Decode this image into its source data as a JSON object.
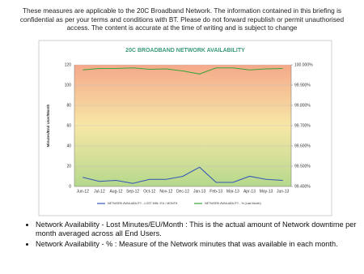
{
  "header": {
    "text": "These measures are applicable to the 20C Broadband Network.  The information contained in this briefing is confidential as per your terms and conditions with BT.  Please do not forward republish or permit unauthorised access.  The content is accurate at the time of writing and is subject to change"
  },
  "chart_data": {
    "type": "line",
    "title": "20C BROADBAND NETWORK AVAILABILITY",
    "y_label": "Minutes/End User/Month",
    "categories": [
      "Jun-12",
      "Jul-12",
      "Aug-12",
      "Sep-12",
      "Oct-12",
      "Nov-12",
      "Dec-12",
      "Jan-13",
      "Feb-13",
      "Mar-13",
      "Apr-13",
      "May-13",
      "Jun-13"
    ],
    "series": [
      {
        "name": "NETWORK AVAILABILITY - LOST MIN / EU / MONTH",
        "color": "#3556b8",
        "values": [
          9,
          5,
          6,
          3,
          7,
          7,
          10,
          19,
          4,
          4,
          10,
          7,
          6
        ]
      },
      {
        "name": "NETWORK AVAILABILITY - % (Last Month)",
        "color": "#3aa53a",
        "axis": "y2",
        "values": [
          99.975,
          99.982,
          99.982,
          99.985,
          99.978,
          99.98,
          99.97,
          99.955,
          99.985,
          99.985,
          99.975,
          99.98,
          99.982
        ]
      }
    ],
    "ylim": [
      0,
      120
    ],
    "yticks": [
      0,
      20,
      40,
      60,
      80,
      100,
      120
    ],
    "y2lim": [
      99.4,
      100.0
    ],
    "y2ticks": [
      {
        "value": 99.4,
        "label": "99.400%"
      },
      {
        "value": 99.5,
        "label": "99.500%"
      },
      {
        "value": 99.6,
        "label": "99.600%"
      },
      {
        "value": 99.7,
        "label": "99.700%"
      },
      {
        "value": 99.8,
        "label": "99.800%"
      },
      {
        "value": 99.9,
        "label": "99.900%"
      },
      {
        "value": 100.0,
        "label": "100.000%"
      }
    ],
    "legend": "bottom"
  },
  "bullets": [
    "Network Availability - Lost Minutes/EU/Month : This is the actual amount of Network downtime per month averaged across all End Users.",
    "Network Availability - % : Measure of the Network minutes that was available in each month."
  ]
}
